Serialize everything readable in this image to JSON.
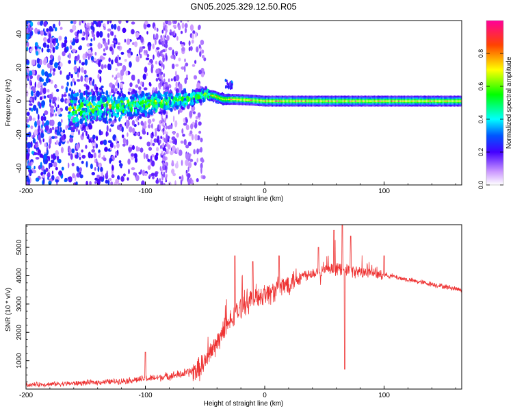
{
  "page": {
    "title": "GN05.2025.329.12.50.R05"
  },
  "chart_data": [
    {
      "type": "heatmap",
      "name": "spectrogram",
      "xlabel": "Height of straight line (km)",
      "ylabel": "Frequency (Hz)",
      "xlim": [
        -200,
        165
      ],
      "ylim": [
        -50,
        48
      ],
      "xticks": [
        -200,
        -100,
        0,
        100
      ],
      "yticks": [
        -40,
        -20,
        0,
        20,
        40
      ],
      "colorbar": {
        "label": "Normalized spectral amplitude",
        "range": [
          0,
          1
        ],
        "ticks": [
          0.0,
          0.2,
          0.4,
          0.6,
          0.8
        ]
      },
      "ridge": {
        "description": "centroid of the strong signal vs height",
        "x": [
          -160,
          -130,
          -100,
          -80,
          -60,
          -50,
          -42,
          -35,
          -25,
          -10,
          0,
          20,
          50,
          80,
          100,
          120,
          165
        ],
        "freq_hz": [
          -5,
          -3,
          -2,
          0,
          2,
          4,
          3,
          1,
          1,
          0.5,
          0,
          0,
          0,
          0,
          0,
          0,
          0
        ]
      }
    },
    {
      "type": "line",
      "name": "snr",
      "xlabel": "Height of straight line (km)",
      "ylabel": "SNR (10 * v/v)",
      "xlim": [
        -200,
        165
      ],
      "ylim": [
        0,
        5800
      ],
      "xticks": [
        -200,
        -100,
        0,
        100
      ],
      "yticks": [
        1000,
        2000,
        3000,
        4000,
        5000
      ],
      "color": "#ee3333",
      "trend": {
        "x": [
          -200,
          -160,
          -120,
          -90,
          -70,
          -55,
          -45,
          -35,
          -25,
          -15,
          -5,
          5,
          15,
          25,
          35,
          45,
          55,
          65,
          75,
          85,
          95,
          105,
          120,
          140,
          165
        ],
        "y": [
          150,
          200,
          280,
          400,
          520,
          700,
          1300,
          2000,
          2600,
          3100,
          3300,
          3400,
          3600,
          3900,
          4050,
          4150,
          4200,
          4250,
          4150,
          4100,
          4050,
          4000,
          3850,
          3700,
          3500
        ]
      },
      "spikes": [
        {
          "x": -100,
          "y": 1300
        },
        {
          "x": -25,
          "y": 4700
        },
        {
          "x": -10,
          "y": 4500
        },
        {
          "x": 12,
          "y": 4700
        },
        {
          "x": 45,
          "y": 5000
        },
        {
          "x": 58,
          "y": 5600
        },
        {
          "x": 65,
          "y": 5800
        },
        {
          "x": 67,
          "y": 700
        },
        {
          "x": 72,
          "y": 5400
        },
        {
          "x": 100,
          "y": 4700
        }
      ]
    }
  ]
}
